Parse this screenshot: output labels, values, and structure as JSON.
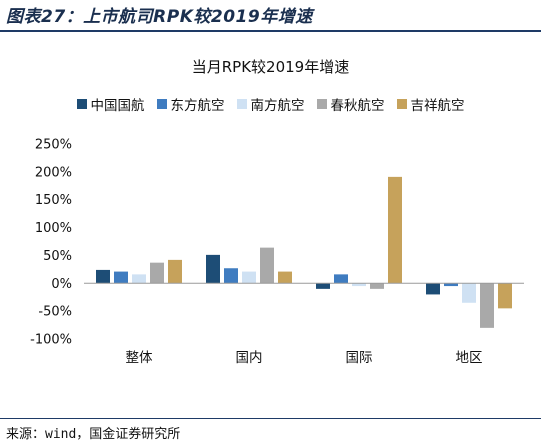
{
  "figure_title": "图表27：上市航司RPK较2019年增速",
  "source": "来源：wind，国金证券研究所",
  "chart_data": {
    "type": "bar",
    "title": "当月RPK较2019年增速",
    "xlabel": "",
    "ylabel": "",
    "categories": [
      "整体",
      "国内",
      "国际",
      "地区"
    ],
    "series": [
      {
        "name": "中国国航",
        "color": "#1d4d76",
        "values": [
          24,
          51,
          -10,
          -20
        ]
      },
      {
        "name": "东方航空",
        "color": "#3f7cc0",
        "values": [
          21,
          27,
          16,
          -5
        ]
      },
      {
        "name": "南方航空",
        "color": "#cfe1f3",
        "values": [
          16,
          21,
          -5,
          -35
        ]
      },
      {
        "name": "春秋航空",
        "color": "#a9a9a9",
        "values": [
          37,
          64,
          -10,
          -80
        ]
      },
      {
        "name": "吉祥航空",
        "color": "#c6a25b",
        "values": [
          42,
          21,
          191,
          -45
        ]
      }
    ],
    "ylim": [
      -100,
      250
    ],
    "yticks": [
      -100,
      -50,
      0,
      50,
      100,
      150,
      200,
      250
    ],
    "ytick_labels": [
      "-100%",
      "-50%",
      "0%",
      "50%",
      "100%",
      "150%",
      "200%",
      "250%"
    ],
    "grid": false,
    "legend_position": "top"
  }
}
